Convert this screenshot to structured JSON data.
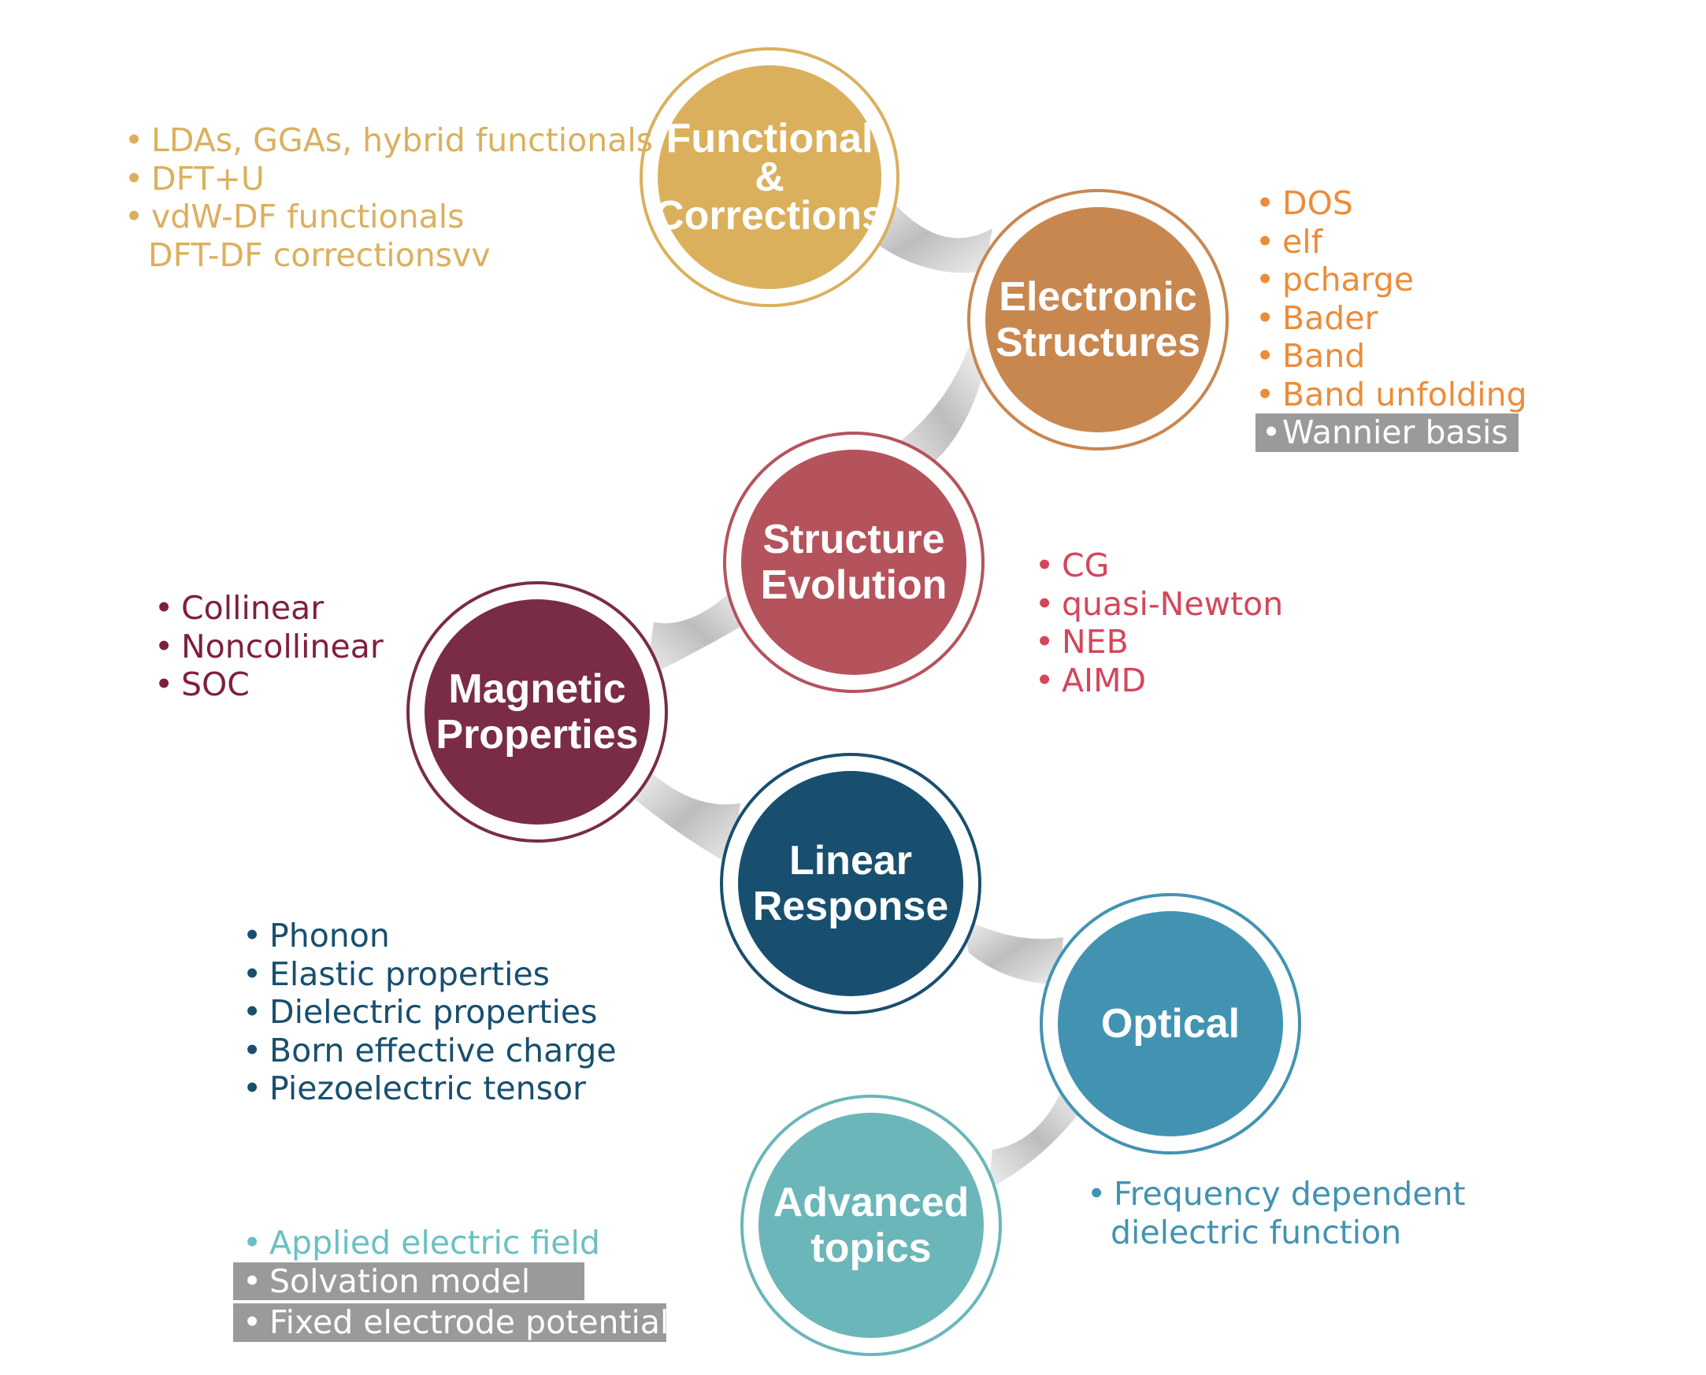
{
  "nodes": {
    "functional": {
      "line1": "Functional",
      "line2": "&",
      "line3": "Corrections",
      "color": "#dbb05d"
    },
    "electronic": {
      "line1": "Electronic",
      "line2": "Structures",
      "color": "#c98750"
    },
    "structure": {
      "line1": "Structure",
      "line2": "Evolution",
      "color": "#b5535d"
    },
    "magnetic": {
      "line1": "Magnetic",
      "line2": "Properties",
      "color": "#7a2c45"
    },
    "linear": {
      "line1": "Linear",
      "line2": "Response",
      "color": "#184f6f"
    },
    "optical": {
      "line1": "Optical",
      "color": "#4293b2"
    },
    "advanced": {
      "line1": "Advanced",
      "line2": "topics",
      "color": "#6bb6b9"
    }
  },
  "lists": {
    "functional": {
      "color": "#dbb05d",
      "items": [
        "LDAs, GGAs, hybrid functionals",
        "DFT+U",
        "vdW-DF functionals"
      ],
      "continuation": "DFT-DF correctionsvv"
    },
    "electronic": {
      "color": "#ec8c3a",
      "items": [
        "DOS",
        "elf",
        "pcharge",
        "Bader",
        "Band",
        "Band unfolding"
      ],
      "highlighted": [
        "Wannier basis"
      ]
    },
    "structure": {
      "color": "#d4465a",
      "items": [
        "CG",
        "quasi-Newton",
        "NEB",
        "AIMD"
      ]
    },
    "magnetic": {
      "color": "#7e1f40",
      "items": [
        "Collinear",
        "Noncollinear",
        "SOC"
      ]
    },
    "linear": {
      "color": "#184f6f",
      "items": [
        "Phonon",
        "Elastic properties",
        "Dielectric properties",
        "Born effective charge",
        "Piezoelectric tensor"
      ]
    },
    "optical": {
      "color": "#4293b2",
      "items": [
        "Frequency dependent"
      ],
      "continuation": "dielectric function"
    },
    "advanced": {
      "color": "#6bc0c3",
      "items": [
        "Applied electric field"
      ],
      "highlighted": [
        "Solvation model",
        "Fixed electrode potential"
      ]
    }
  },
  "bullet": "•",
  "highlight_color": "#9a9a9a"
}
